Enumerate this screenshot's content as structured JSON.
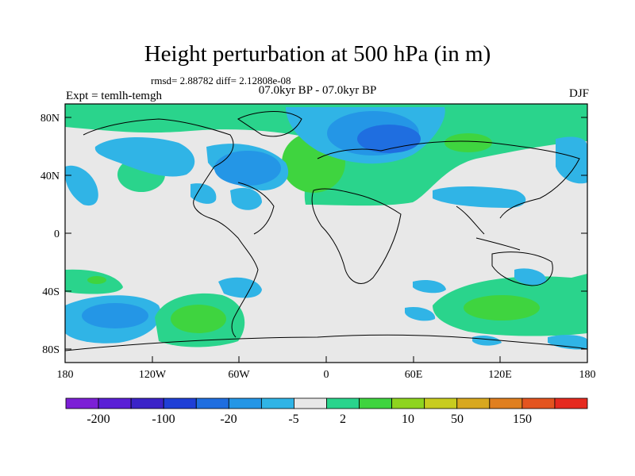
{
  "title": "Height perturbation at 500 hPa (in m)",
  "stats": "rmsd= 2.88782 diff= 2.12808e-08",
  "period": "07.0kyr BP - 07.0kyr BP",
  "experiment": "Expt = temlh-temgh",
  "season": "DJF",
  "map": {
    "lat_ticks": [
      "80N",
      "40N",
      "0",
      "40S",
      "80S"
    ],
    "lon_ticks": [
      "180",
      "120W",
      "60W",
      "0",
      "60E",
      "120E",
      "180"
    ]
  },
  "colorbar": {
    "labels": [
      "-200",
      "-100",
      "-20",
      "-5",
      "2",
      "10",
      "50",
      "150"
    ],
    "colors": [
      "#7c1fd6",
      "#5a1fd6",
      "#3b23c8",
      "#1f3fd6",
      "#1f6ee0",
      "#2496e6",
      "#30b4e6",
      "#e8e8e8",
      "#2ad48c",
      "#3fd43f",
      "#8ed41f",
      "#c8cc1f",
      "#d8a81f",
      "#e07f1f",
      "#e4541f",
      "#e62a1f"
    ]
  },
  "colors": {
    "land_bg": "#e8e8e8",
    "coast": "#000000"
  }
}
